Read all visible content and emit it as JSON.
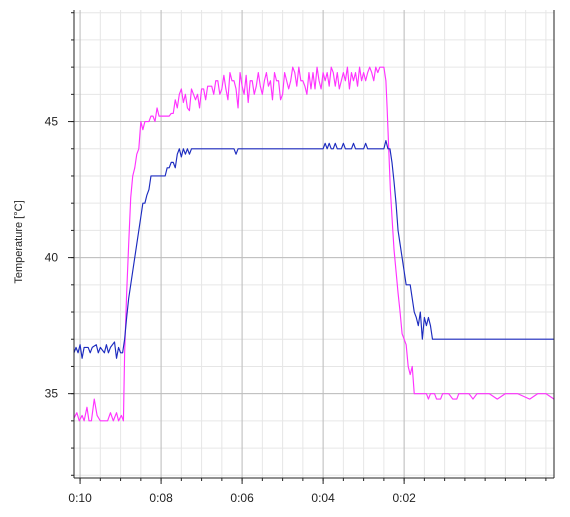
{
  "chart_data": {
    "type": "line",
    "title": "",
    "xlabel": "",
    "ylabel": "Temperature [°C]",
    "grid": true,
    "legend": "none",
    "x_ticks": [
      "0:10",
      "0:08",
      "0:06",
      "0:04",
      "0:02"
    ],
    "x_tick_positions_min": [
      10,
      8,
      6,
      4,
      2
    ],
    "xlim_min": [
      10.15,
      -1.7
    ],
    "xaxis_reversed": true,
    "y_ticks": [
      35,
      40,
      45
    ],
    "ylim": [
      31.9,
      49.1
    ],
    "colors": {
      "axis": "#222222",
      "major_grid": "#bdbdbd",
      "minor_grid": "#e6e6e6",
      "series_1": "#ff33ff",
      "series_2": "#1c2bbf"
    },
    "series": [
      {
        "color": "#ff33ff",
        "points": [
          [
            10.15,
            34.1
          ],
          [
            10.08,
            34.3
          ],
          [
            10.02,
            34.0
          ],
          [
            9.95,
            34.2
          ],
          [
            9.9,
            34.0
          ],
          [
            9.83,
            34.5
          ],
          [
            9.78,
            34.0
          ],
          [
            9.72,
            34.0
          ],
          [
            9.65,
            34.8
          ],
          [
            9.58,
            34.2
          ],
          [
            9.5,
            34.0
          ],
          [
            9.4,
            34.0
          ],
          [
            9.32,
            34.0
          ],
          [
            9.25,
            34.3
          ],
          [
            9.18,
            34.0
          ],
          [
            9.1,
            34.3
          ],
          [
            9.05,
            34.0
          ],
          [
            8.98,
            34.2
          ],
          [
            8.93,
            34.0
          ],
          [
            8.9,
            36.5
          ],
          [
            8.85,
            38.7
          ],
          [
            8.8,
            40.5
          ],
          [
            8.75,
            42.2
          ],
          [
            8.7,
            43.0
          ],
          [
            8.65,
            43.3
          ],
          [
            8.6,
            43.8
          ],
          [
            8.55,
            44.0
          ],
          [
            8.5,
            45.0
          ],
          [
            8.45,
            44.7
          ],
          [
            8.4,
            45.0
          ],
          [
            8.35,
            45.0
          ],
          [
            8.3,
            45.0
          ],
          [
            8.25,
            45.2
          ],
          [
            8.2,
            45.2
          ],
          [
            8.15,
            45.0
          ],
          [
            8.1,
            45.5
          ],
          [
            8.05,
            45.2
          ],
          [
            7.8,
            45.2
          ],
          [
            7.75,
            45.3
          ],
          [
            7.7,
            45.3
          ],
          [
            7.65,
            45.8
          ],
          [
            7.6,
            45.5
          ],
          [
            7.55,
            46.0
          ],
          [
            7.5,
            46.2
          ],
          [
            7.45,
            45.7
          ],
          [
            7.4,
            46.0
          ],
          [
            7.35,
            45.5
          ],
          [
            7.3,
            45.4
          ],
          [
            7.25,
            46.2
          ],
          [
            7.2,
            46.0
          ],
          [
            7.15,
            45.8
          ],
          [
            7.1,
            46.0
          ],
          [
            7.05,
            45.5
          ],
          [
            7.0,
            46.2
          ],
          [
            6.95,
            46.2
          ],
          [
            6.9,
            45.8
          ],
          [
            6.85,
            46.3
          ],
          [
            6.8,
            46.3
          ],
          [
            6.75,
            46.3
          ],
          [
            6.7,
            46.0
          ],
          [
            6.65,
            46.5
          ],
          [
            6.6,
            46.5
          ],
          [
            6.55,
            46.0
          ],
          [
            6.5,
            46.2
          ],
          [
            6.45,
            46.7
          ],
          [
            6.4,
            46.2
          ],
          [
            6.35,
            45.8
          ],
          [
            6.3,
            46.8
          ],
          [
            6.25,
            46.5
          ],
          [
            6.2,
            46.5
          ],
          [
            6.15,
            46.2
          ],
          [
            6.1,
            45.5
          ],
          [
            6.05,
            46.8
          ],
          [
            6.0,
            46.3
          ],
          [
            5.95,
            46.0
          ],
          [
            5.9,
            46.7
          ],
          [
            5.85,
            45.7
          ],
          [
            5.8,
            46.5
          ],
          [
            5.75,
            46.5
          ],
          [
            5.7,
            46.0
          ],
          [
            5.65,
            46.3
          ],
          [
            5.6,
            46.8
          ],
          [
            5.55,
            46.3
          ],
          [
            5.5,
            46.0
          ],
          [
            5.45,
            46.5
          ],
          [
            5.4,
            46.8
          ],
          [
            5.35,
            46.3
          ],
          [
            5.3,
            46.5
          ],
          [
            5.25,
            45.8
          ],
          [
            5.2,
            46.8
          ],
          [
            5.15,
            46.5
          ],
          [
            5.1,
            46.5
          ],
          [
            5.05,
            45.8
          ],
          [
            5.0,
            46.0
          ],
          [
            4.95,
            46.8
          ],
          [
            4.9,
            46.5
          ],
          [
            4.85,
            46.2
          ],
          [
            4.8,
            46.5
          ],
          [
            4.75,
            47.0
          ],
          [
            4.7,
            46.8
          ],
          [
            4.65,
            46.3
          ],
          [
            4.6,
            47.0
          ],
          [
            4.55,
            46.5
          ],
          [
            4.5,
            46.5
          ],
          [
            4.45,
            46.3
          ],
          [
            4.4,
            46.0
          ],
          [
            4.35,
            46.8
          ],
          [
            4.3,
            46.2
          ],
          [
            4.25,
            46.8
          ],
          [
            4.2,
            46.2
          ],
          [
            4.15,
            47.0
          ],
          [
            4.1,
            46.5
          ],
          [
            4.05,
            46.2
          ],
          [
            4.0,
            46.8
          ],
          [
            3.95,
            46.5
          ],
          [
            3.9,
            46.8
          ],
          [
            3.85,
            46.3
          ],
          [
            3.8,
            47.0
          ],
          [
            3.75,
            46.8
          ],
          [
            3.7,
            46.3
          ],
          [
            3.65,
            46.8
          ],
          [
            3.6,
            46.2
          ],
          [
            3.55,
            46.5
          ],
          [
            3.5,
            46.8
          ],
          [
            3.45,
            46.5
          ],
          [
            3.4,
            47.0
          ],
          [
            3.35,
            46.2
          ],
          [
            3.3,
            46.8
          ],
          [
            3.25,
            46.5
          ],
          [
            3.2,
            46.8
          ],
          [
            3.15,
            46.3
          ],
          [
            3.1,
            47.0
          ],
          [
            3.05,
            46.5
          ],
          [
            3.0,
            46.8
          ],
          [
            2.95,
            46.5
          ],
          [
            2.9,
            46.8
          ],
          [
            2.85,
            47.0
          ],
          [
            2.8,
            46.8
          ],
          [
            2.75,
            46.5
          ],
          [
            2.7,
            47.0
          ],
          [
            2.65,
            46.8
          ],
          [
            2.6,
            47.0
          ],
          [
            2.55,
            47.0
          ],
          [
            2.5,
            47.0
          ],
          [
            2.45,
            46.5
          ],
          [
            2.42,
            45.5
          ],
          [
            2.38,
            44.0
          ],
          [
            2.34,
            42.5
          ],
          [
            2.3,
            41.5
          ],
          [
            2.25,
            40.3
          ],
          [
            2.2,
            39.5
          ],
          [
            2.15,
            38.7
          ],
          [
            2.1,
            38.0
          ],
          [
            2.05,
            37.2
          ],
          [
            2.0,
            37.0
          ],
          [
            1.95,
            36.8
          ],
          [
            1.9,
            36.0
          ],
          [
            1.85,
            35.7
          ],
          [
            1.8,
            36.0
          ],
          [
            1.75,
            35.0
          ],
          [
            1.5,
            35.0
          ],
          [
            1.45,
            35.0
          ],
          [
            1.4,
            34.8
          ],
          [
            1.35,
            35.0
          ],
          [
            1.25,
            35.0
          ],
          [
            1.2,
            34.8
          ],
          [
            1.1,
            34.8
          ],
          [
            1.05,
            35.0
          ],
          [
            0.9,
            35.0
          ],
          [
            0.8,
            34.8
          ],
          [
            0.7,
            34.8
          ],
          [
            0.65,
            35.0
          ],
          [
            0.4,
            35.0
          ],
          [
            0.3,
            34.8
          ],
          [
            0.2,
            35.0
          ],
          [
            -0.1,
            35.0
          ],
          [
            -0.3,
            34.8
          ],
          [
            -0.5,
            35.0
          ],
          [
            -0.8,
            35.0
          ],
          [
            -1.1,
            34.8
          ],
          [
            -1.3,
            35.0
          ],
          [
            -1.5,
            35.0
          ],
          [
            -1.7,
            34.8
          ]
        ]
      },
      {
        "color": "#1c2bbf",
        "points": [
          [
            10.15,
            36.5
          ],
          [
            10.1,
            36.7
          ],
          [
            10.05,
            36.5
          ],
          [
            10.0,
            36.8
          ],
          [
            9.95,
            36.3
          ],
          [
            9.9,
            36.7
          ],
          [
            9.8,
            36.7
          ],
          [
            9.75,
            36.5
          ],
          [
            9.7,
            36.7
          ],
          [
            9.6,
            36.8
          ],
          [
            9.55,
            36.5
          ],
          [
            9.5,
            36.7
          ],
          [
            9.4,
            36.5
          ],
          [
            9.35,
            36.8
          ],
          [
            9.3,
            36.5
          ],
          [
            9.25,
            36.7
          ],
          [
            9.15,
            36.9
          ],
          [
            9.1,
            36.3
          ],
          [
            9.05,
            36.7
          ],
          [
            9.0,
            36.5
          ],
          [
            8.95,
            36.5
          ],
          [
            8.9,
            37.0
          ],
          [
            8.85,
            37.8
          ],
          [
            8.8,
            38.5
          ],
          [
            8.75,
            39.0
          ],
          [
            8.7,
            39.5
          ],
          [
            8.65,
            40.0
          ],
          [
            8.6,
            40.5
          ],
          [
            8.55,
            41.0
          ],
          [
            8.5,
            41.5
          ],
          [
            8.45,
            42.0
          ],
          [
            8.4,
            42.0
          ],
          [
            8.35,
            42.3
          ],
          [
            8.3,
            42.5
          ],
          [
            8.25,
            43.0
          ],
          [
            8.2,
            43.0
          ],
          [
            8.1,
            43.0
          ],
          [
            8.0,
            43.0
          ],
          [
            7.9,
            43.0
          ],
          [
            7.85,
            43.3
          ],
          [
            7.8,
            43.3
          ],
          [
            7.75,
            43.5
          ],
          [
            7.7,
            43.5
          ],
          [
            7.65,
            43.3
          ],
          [
            7.6,
            43.8
          ],
          [
            7.55,
            44.0
          ],
          [
            7.5,
            43.7
          ],
          [
            7.45,
            44.0
          ],
          [
            7.4,
            43.8
          ],
          [
            7.35,
            44.0
          ],
          [
            7.3,
            43.8
          ],
          [
            7.25,
            44.0
          ],
          [
            7.2,
            44.0
          ],
          [
            7.0,
            44.0
          ],
          [
            6.5,
            44.0
          ],
          [
            6.2,
            44.0
          ],
          [
            6.15,
            43.8
          ],
          [
            6.1,
            44.0
          ],
          [
            5.8,
            44.0
          ],
          [
            5.5,
            44.0
          ],
          [
            5.0,
            44.0
          ],
          [
            4.5,
            44.0
          ],
          [
            4.0,
            44.0
          ],
          [
            3.95,
            44.2
          ],
          [
            3.9,
            44.0
          ],
          [
            3.85,
            44.2
          ],
          [
            3.8,
            44.0
          ],
          [
            3.75,
            44.0
          ],
          [
            3.7,
            44.2
          ],
          [
            3.65,
            44.0
          ],
          [
            3.55,
            44.0
          ],
          [
            3.5,
            44.2
          ],
          [
            3.45,
            44.0
          ],
          [
            3.3,
            44.0
          ],
          [
            3.25,
            44.2
          ],
          [
            3.2,
            44.0
          ],
          [
            3.0,
            44.0
          ],
          [
            2.95,
            44.2
          ],
          [
            2.9,
            44.0
          ],
          [
            2.5,
            44.0
          ],
          [
            2.45,
            44.3
          ],
          [
            2.4,
            44.0
          ],
          [
            2.35,
            44.0
          ],
          [
            2.3,
            43.5
          ],
          [
            2.25,
            42.8
          ],
          [
            2.2,
            42.0
          ],
          [
            2.15,
            41.0
          ],
          [
            2.1,
            40.5
          ],
          [
            2.05,
            40.0
          ],
          [
            2.0,
            39.5
          ],
          [
            1.95,
            39.0
          ],
          [
            1.9,
            39.0
          ],
          [
            1.85,
            39.0
          ],
          [
            1.8,
            38.5
          ],
          [
            1.75,
            38.0
          ],
          [
            1.7,
            37.8
          ],
          [
            1.65,
            37.5
          ],
          [
            1.6,
            38.0
          ],
          [
            1.55,
            37.0
          ],
          [
            1.5,
            37.8
          ],
          [
            1.45,
            37.5
          ],
          [
            1.4,
            37.8
          ],
          [
            1.35,
            37.5
          ],
          [
            1.3,
            37.0
          ],
          [
            1.25,
            37.0
          ],
          [
            1.2,
            37.0
          ],
          [
            1.0,
            37.0
          ],
          [
            0.8,
            37.0
          ],
          [
            0.5,
            37.0
          ],
          [
            0.2,
            37.0
          ],
          [
            -0.2,
            37.0
          ],
          [
            -0.5,
            37.0
          ],
          [
            -0.8,
            37.0
          ],
          [
            -1.2,
            37.0
          ],
          [
            -1.5,
            37.0
          ],
          [
            -1.7,
            37.0
          ]
        ]
      }
    ]
  }
}
